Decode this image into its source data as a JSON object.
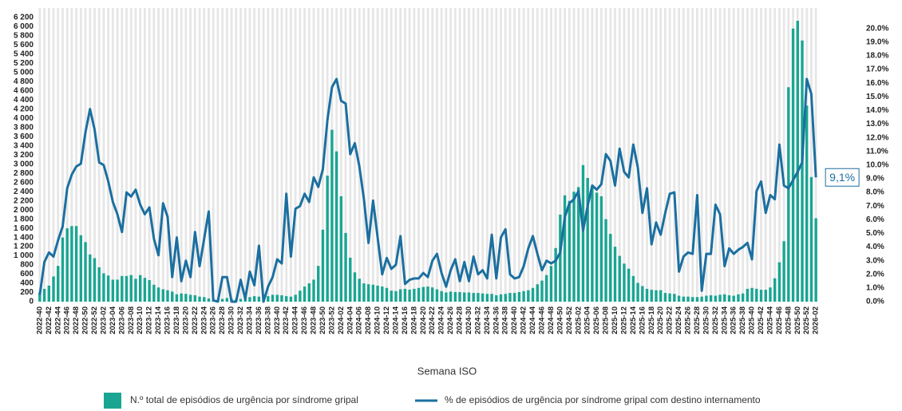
{
  "chart_data": {
    "type": "bar",
    "x_label": "Semana ISO",
    "categories": [
      "2022-40",
      null,
      "2022-42",
      null,
      "2022-44",
      null,
      "2022-46",
      null,
      "2022-48",
      null,
      "2022-50",
      null,
      "2022-52",
      null,
      "2023-02",
      null,
      "2023-04",
      null,
      "2023-06",
      null,
      "2023-08",
      null,
      "2023-10",
      null,
      "2023-12",
      null,
      "2023-14",
      null,
      "2023-16",
      null,
      "2023-18",
      null,
      "2023-20",
      null,
      "2023-22",
      null,
      "2023-24",
      null,
      "2023-26",
      null,
      "2023-28",
      null,
      "2023-30",
      null,
      "2023-32",
      null,
      "2023-34",
      null,
      "2023-36",
      null,
      "2023-38",
      null,
      "2023-40",
      null,
      "2023-42",
      null,
      "2023-44",
      null,
      "2023-46",
      null,
      "2023-48",
      null,
      "2023-50",
      null,
      "2023-52",
      null,
      "2024-02",
      null,
      "2024-04",
      null,
      "2024-06",
      null,
      "2024-08",
      null,
      "2024-10",
      null,
      "2024-12",
      null,
      "2024-14",
      null,
      "2024-16",
      null,
      "2024-18",
      null,
      "2024-20",
      null,
      "2024-22",
      null,
      "2024-24",
      null,
      "2024-26",
      null,
      "2024-28",
      null,
      "2024-30",
      null,
      "2024-32",
      null,
      "2024-34",
      null,
      "2024-36",
      null,
      "2024-38",
      null,
      "2024-40",
      null,
      "2024-42",
      null,
      "2024-44",
      null,
      "2024-46",
      null,
      "2024-48",
      null,
      "2024-50",
      null,
      "2024-52",
      null,
      "2025-02",
      null,
      "2025-04",
      null,
      "2025-06",
      null,
      "2025-08",
      null,
      "2025-10",
      null,
      "2025-12",
      null,
      "2025-14",
      null,
      "2025-16",
      null,
      "2025-18",
      null,
      "2025-20",
      null,
      "2025-22",
      null,
      "2025-24",
      null,
      "2025-26",
      null,
      "2025-28",
      null,
      "2025-30",
      null,
      "2025-32",
      null,
      "2025-34",
      null,
      "2025-36",
      null,
      "2025-38",
      null,
      "2025-40",
      null,
      "2025-42",
      null,
      "2025-44",
      null,
      "2025-46",
      null,
      "2025-48",
      null,
      "2025-50",
      null,
      "2025-52",
      null,
      "2026-02"
    ],
    "series": [
      {
        "name": "N.º total de episódios de urgência por síndrome gripal",
        "type": "bar",
        "color": "#1aa592",
        "values": [
          200,
          280,
          350,
          550,
          780,
          1400,
          1600,
          1650,
          1650,
          1450,
          1300,
          1030,
          950,
          750,
          620,
          570,
          480,
          480,
          560,
          560,
          580,
          500,
          580,
          520,
          470,
          370,
          310,
          270,
          250,
          220,
          160,
          180,
          170,
          150,
          140,
          110,
          100,
          70,
          30,
          40,
          60,
          80,
          60,
          50,
          60,
          90,
          100,
          120,
          110,
          100,
          120,
          150,
          150,
          140,
          120,
          110,
          150,
          240,
          330,
          400,
          480,
          780,
          1570,
          2750,
          3750,
          3280,
          2300,
          1500,
          960,
          640,
          500,
          400,
          380,
          370,
          350,
          330,
          300,
          240,
          230,
          270,
          280,
          260,
          280,
          300,
          320,
          330,
          310,
          270,
          230,
          200,
          220,
          210,
          210,
          200,
          200,
          190,
          190,
          180,
          170,
          170,
          140,
          160,
          170,
          190,
          190,
          210,
          230,
          250,
          300,
          380,
          460,
          580,
          780,
          1170,
          1900,
          2320,
          2200,
          2400,
          2500,
          2980,
          2700,
          2500,
          2380,
          2300,
          1800,
          1480,
          1200,
          1000,
          830,
          720,
          560,
          410,
          340,
          280,
          260,
          250,
          250,
          190,
          180,
          170,
          130,
          110,
          110,
          100,
          100,
          110,
          130,
          140,
          130,
          150,
          160,
          140,
          130,
          160,
          180,
          280,
          300,
          280,
          260,
          260,
          310,
          510,
          860,
          1320,
          4680,
          5960,
          6130,
          5700,
          4280,
          2720,
          1820
        ]
      },
      {
        "name": "% de episódios de urgência por síndrome gripal com destino internamento",
        "type": "line",
        "axis": "y2",
        "color": "#1b6fa0",
        "values": [
          0.5,
          2.9,
          3.6,
          3.3,
          4.5,
          5.5,
          8.3,
          9.3,
          9.9,
          10.1,
          12.4,
          14.1,
          12.6,
          10.2,
          10.0,
          8.8,
          7.3,
          6.4,
          5.1,
          8.0,
          7.7,
          8.2,
          7.1,
          6.4,
          6.9,
          4.6,
          3.4,
          7.2,
          6.2,
          1.8,
          4.7,
          1.5,
          3.0,
          1.8,
          5.1,
          2.6,
          4.6,
          6.6,
          0.1,
          0.0,
          1.8,
          1.8,
          0.0,
          0.0,
          1.6,
          0.2,
          2.2,
          1.2,
          4.1,
          0.0,
          1.1,
          1.8,
          3.1,
          2.8,
          7.9,
          3.3,
          6.8,
          7.0,
          7.9,
          7.3,
          9.1,
          8.4,
          9.7,
          13.3,
          15.7,
          16.3,
          14.7,
          14.5,
          10.8,
          11.6,
          9.9,
          7.5,
          4.3,
          7.4,
          4.7,
          2.0,
          3.2,
          2.4,
          2.7,
          4.8,
          1.3,
          1.6,
          1.7,
          1.7,
          2.1,
          1.8,
          3.0,
          3.5,
          2.1,
          1.1,
          2.3,
          3.1,
          1.5,
          2.9,
          1.5,
          3.3,
          2.0,
          2.3,
          1.7,
          4.9,
          1.7,
          4.7,
          5.3,
          2.0,
          1.7,
          1.8,
          2.6,
          3.9,
          4.8,
          3.5,
          2.3,
          3.0,
          2.8,
          3.0,
          3.6,
          6.2,
          7.2,
          7.5,
          8.1,
          5.2,
          7.0,
          8.5,
          8.2,
          8.6,
          10.8,
          10.3,
          8.5,
          11.2,
          9.5,
          9.1,
          11.5,
          9.8,
          6.5,
          8.3,
          4.2,
          5.8,
          4.9,
          6.5,
          7.9,
          8.0,
          2.2,
          3.3,
          3.6,
          3.5,
          7.8,
          0.8,
          3.5,
          3.5,
          7.1,
          6.4,
          2.6,
          3.9,
          3.5,
          3.8,
          4.0,
          4.3,
          3.1,
          8.1,
          8.8,
          6.5,
          7.8,
          7.5,
          11.5,
          8.5,
          8.3,
          8.9,
          9.5,
          10.2,
          16.3,
          15.2,
          9.1
        ],
        "value_labels": [
          null,
          null,
          null,
          null,
          null,
          null,
          null,
          null,
          null,
          null,
          null,
          null,
          null,
          null,
          null,
          null,
          null,
          null,
          null,
          null,
          null,
          null,
          null,
          null,
          null,
          null,
          null,
          null,
          null,
          null,
          null,
          null,
          null,
          null,
          null,
          null,
          null,
          null,
          null,
          null,
          null,
          null,
          null,
          null,
          null,
          null,
          null,
          null,
          null,
          null,
          null,
          null,
          null,
          null,
          null,
          null,
          null,
          null,
          null,
          null,
          null,
          null,
          null,
          null,
          null,
          null,
          null,
          null,
          null,
          null,
          null,
          null,
          null,
          null,
          null,
          null,
          null,
          null,
          null,
          null,
          null,
          null,
          null,
          null,
          null,
          null,
          null,
          null,
          null,
          null,
          null,
          null,
          null,
          null,
          null,
          null,
          null,
          null,
          null,
          null,
          null,
          null,
          null,
          null,
          null,
          null,
          null,
          null,
          null,
          null,
          null,
          null,
          null,
          null,
          null,
          null,
          null,
          null,
          null,
          null,
          null,
          null,
          null,
          null,
          null,
          null,
          null,
          null,
          null,
          null,
          null,
          null,
          null,
          null,
          null,
          null,
          null,
          null,
          null,
          null,
          null,
          null,
          null,
          null,
          null,
          null,
          null,
          null,
          null,
          null,
          null,
          null,
          null,
          null,
          null,
          null,
          null,
          null,
          null,
          null,
          null,
          null,
          null,
          null,
          null,
          null,
          null,
          null,
          null,
          null,
          "9,1%"
        ]
      }
    ],
    "ylim": [
      0,
      6200
    ],
    "yticks": [
      0,
      200,
      400,
      600,
      800,
      {
        "value": 1000,
        "label": "1 000"
      },
      {
        "value": 1200,
        "label": "1 200"
      },
      {
        "value": 1400,
        "label": "1 400"
      },
      {
        "value": 1600,
        "label": "1 600"
      },
      {
        "value": 1800,
        "label": "1 800"
      },
      {
        "value": 2000,
        "label": "2 000"
      },
      {
        "value": 2200,
        "label": "2 200"
      },
      {
        "value": 2400,
        "label": "2 400"
      },
      {
        "value": 2600,
        "label": "2 600"
      },
      {
        "value": 2800,
        "label": "2 800"
      },
      {
        "value": 3000,
        "label": "3 000"
      },
      {
        "value": 3200,
        "label": "3 200"
      },
      {
        "value": 3400,
        "label": "3 400"
      },
      {
        "value": 3600,
        "label": "3 600"
      },
      {
        "value": 3800,
        "label": "3 800"
      },
      {
        "value": 4000,
        "label": "4 000"
      },
      {
        "value": 4200,
        "label": "4 200"
      },
      {
        "value": 4400,
        "label": "4 400"
      },
      {
        "value": 4600,
        "label": "4 600"
      },
      {
        "value": 4800,
        "label": "4 800"
      },
      {
        "value": 5000,
        "label": "5 000"
      },
      {
        "value": 5200,
        "label": "5 200"
      },
      {
        "value": 5400,
        "label": "5 400"
      },
      {
        "value": 5600,
        "label": "5 600"
      },
      {
        "value": 5800,
        "label": "5 800"
      },
      {
        "value": 6000,
        "label": "6 000"
      },
      {
        "value": 6200,
        "label": "6 200"
      }
    ],
    "y2lim": [
      0,
      20.8
    ],
    "y2ticks": [
      {
        "value": 0,
        "label": "0.0%"
      },
      {
        "value": 1,
        "label": "1.0%"
      },
      {
        "value": 2,
        "label": "2.0%"
      },
      {
        "value": 3,
        "label": "3.0%"
      },
      {
        "value": 4,
        "label": "4.0%"
      },
      {
        "value": 5,
        "label": "5.0%"
      },
      {
        "value": 6,
        "label": "6.0%"
      },
      {
        "value": 7,
        "label": "7.0%"
      },
      {
        "value": 8,
        "label": "8.0%"
      },
      {
        "value": 9,
        "label": "9.0%"
      },
      {
        "value": 10,
        "label": "10.0%"
      },
      {
        "value": 11,
        "label": "11.0%"
      },
      {
        "value": 12,
        "label": "12.0%"
      },
      {
        "value": 13,
        "label": "13.0%"
      },
      {
        "value": 14,
        "label": "14.0%"
      },
      {
        "value": 15,
        "label": "15.0%"
      },
      {
        "value": 16,
        "label": "16.0%"
      },
      {
        "value": 17,
        "label": "17.0%"
      },
      {
        "value": 18,
        "label": "18.0%"
      },
      {
        "value": 19,
        "label": "19.0%"
      },
      {
        "value": 20,
        "label": "20.0%"
      }
    ],
    "legend": "bottom"
  }
}
